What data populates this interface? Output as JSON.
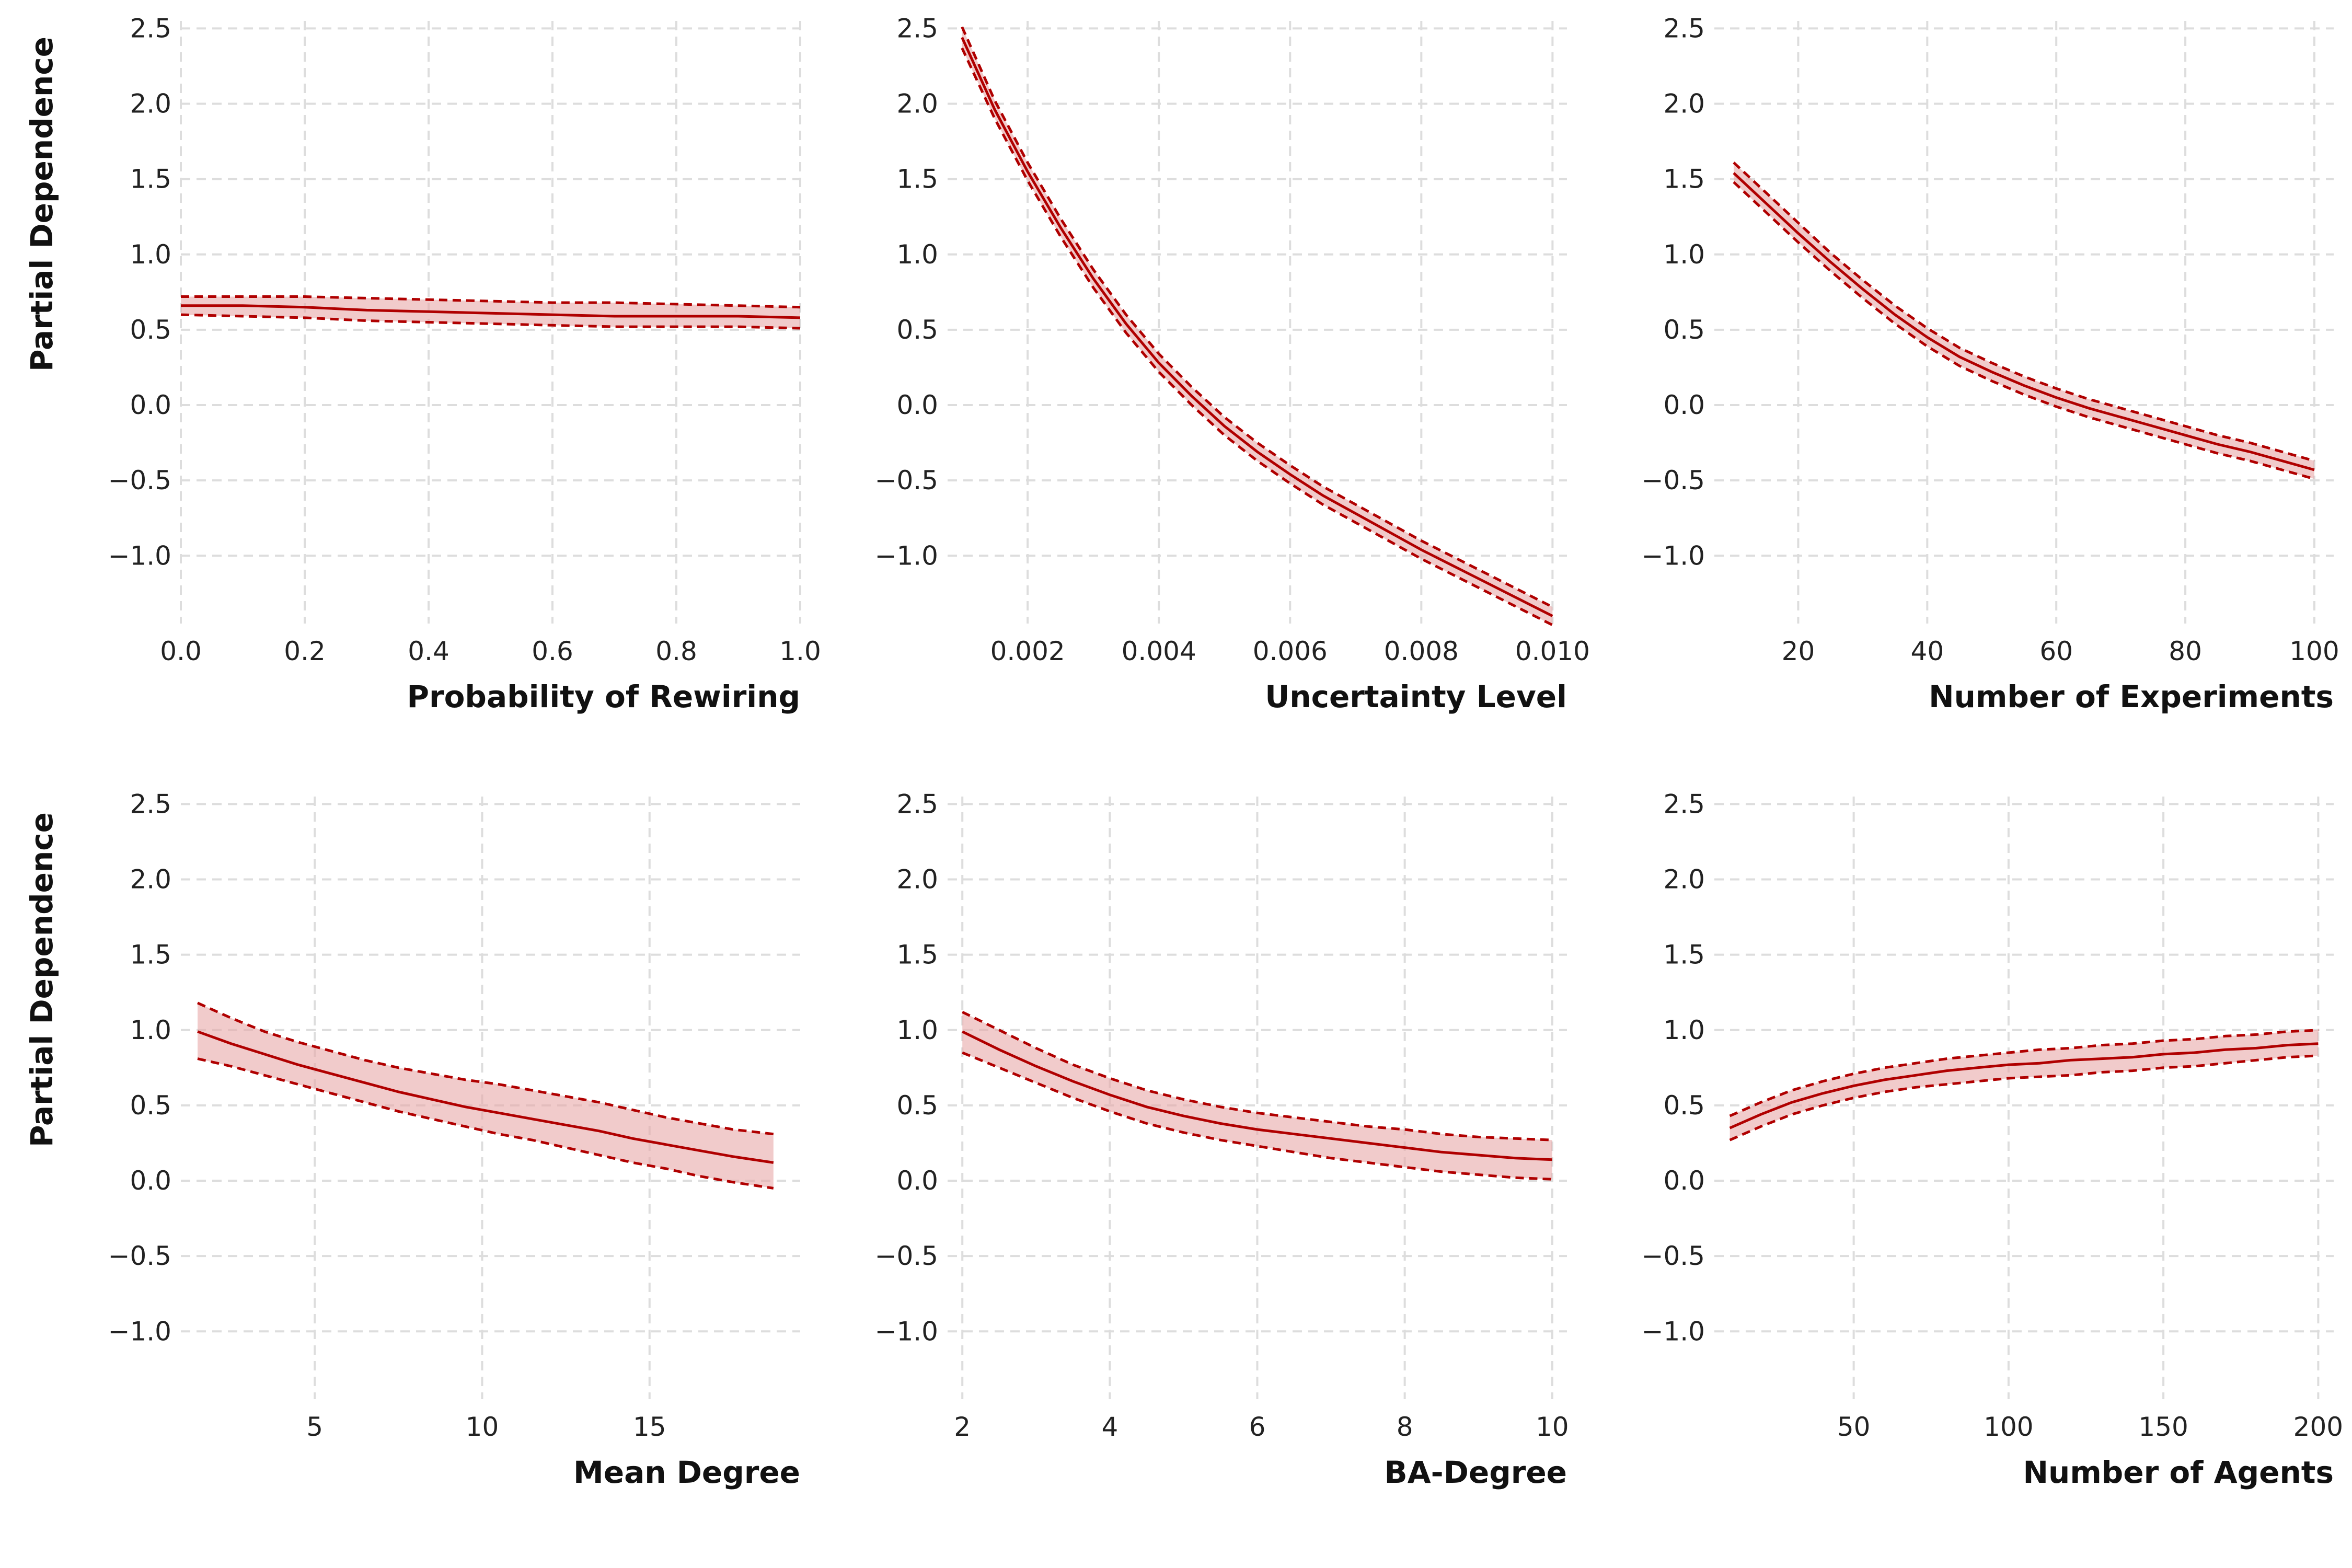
{
  "colors": {
    "line": "#b00000",
    "band": "#e8a9a9",
    "grid": "#dddddd"
  },
  "chart_data": [
    {
      "type": "line",
      "xlabel": "Probability of Rewiring",
      "ylabel": "Partial Dependence",
      "xlim": [
        0.0,
        1.0
      ],
      "ylim": [
        -1.45,
        2.55
      ],
      "xticks": [
        0.0,
        0.2,
        0.4,
        0.6,
        0.8,
        1.0
      ],
      "xtick_labels": [
        "0.0",
        "0.2",
        "0.4",
        "0.6",
        "0.8",
        "1.0"
      ],
      "yticks": [
        -1.0,
        -0.5,
        0.0,
        0.5,
        1.0,
        1.5,
        2.0,
        2.5
      ],
      "ytick_labels": [
        "−1.0",
        "−0.5",
        "0.0",
        "0.5",
        "1.0",
        "1.5",
        "2.0",
        "2.5"
      ],
      "grid": true,
      "x": [
        0.0,
        0.1,
        0.2,
        0.3,
        0.4,
        0.5,
        0.6,
        0.7,
        0.8,
        0.9,
        1.0
      ],
      "mean": [
        0.66,
        0.66,
        0.65,
        0.63,
        0.62,
        0.61,
        0.6,
        0.59,
        0.59,
        0.59,
        0.58
      ],
      "lower": [
        0.6,
        0.59,
        0.58,
        0.56,
        0.55,
        0.54,
        0.53,
        0.52,
        0.52,
        0.52,
        0.51
      ],
      "upper": [
        0.72,
        0.72,
        0.72,
        0.71,
        0.7,
        0.69,
        0.68,
        0.68,
        0.67,
        0.66,
        0.65
      ]
    },
    {
      "type": "line",
      "xlabel": "Uncertainty Level",
      "ylabel": "",
      "xlim": [
        0.00078,
        0.01022
      ],
      "ylim": [
        -1.45,
        2.55
      ],
      "xticks": [
        0.002,
        0.004,
        0.006,
        0.008,
        0.01
      ],
      "xtick_labels": [
        "0.002",
        "0.004",
        "0.006",
        "0.008",
        "0.010"
      ],
      "yticks": [
        -1.0,
        -0.5,
        0.0,
        0.5,
        1.0,
        1.5,
        2.0,
        2.5
      ],
      "ytick_labels": [
        "−1.0",
        "−0.5",
        "0.0",
        "0.5",
        "1.0",
        "1.5",
        "2.0",
        "2.5"
      ],
      "grid": true,
      "x": [
        0.001,
        0.0015,
        0.002,
        0.0025,
        0.003,
        0.0035,
        0.004,
        0.0045,
        0.005,
        0.0055,
        0.006,
        0.0065,
        0.007,
        0.0075,
        0.008,
        0.0085,
        0.009,
        0.0095,
        0.01
      ],
      "mean": [
        2.44,
        1.96,
        1.55,
        1.18,
        0.84,
        0.54,
        0.28,
        0.06,
        -0.14,
        -0.31,
        -0.46,
        -0.6,
        -0.72,
        -0.84,
        -0.96,
        -1.07,
        -1.18,
        -1.29,
        -1.4
      ],
      "lower": [
        2.37,
        1.9,
        1.49,
        1.12,
        0.78,
        0.48,
        0.22,
        0.0,
        -0.2,
        -0.37,
        -0.52,
        -0.66,
        -0.78,
        -0.9,
        -1.02,
        -1.13,
        -1.24,
        -1.35,
        -1.46
      ],
      "upper": [
        2.51,
        2.02,
        1.61,
        1.24,
        0.9,
        0.6,
        0.34,
        0.12,
        -0.08,
        -0.25,
        -0.4,
        -0.54,
        -0.66,
        -0.78,
        -0.9,
        -1.01,
        -1.12,
        -1.23,
        -1.34
      ]
    },
    {
      "type": "line",
      "xlabel": "Number of Experiments",
      "ylabel": "",
      "xlim": [
        7,
        103
      ],
      "ylim": [
        -1.45,
        2.55
      ],
      "xticks": [
        20,
        40,
        60,
        80,
        100
      ],
      "xtick_labels": [
        "20",
        "40",
        "60",
        "80",
        "100"
      ],
      "yticks": [
        -1.0,
        -0.5,
        0.0,
        0.5,
        1.0,
        1.5,
        2.0,
        2.5
      ],
      "ytick_labels": [
        "−1.0",
        "−0.5",
        "0.0",
        "0.5",
        "1.0",
        "1.5",
        "2.0",
        "2.5"
      ],
      "grid": true,
      "x": [
        10,
        15,
        20,
        25,
        30,
        35,
        40,
        45,
        50,
        55,
        60,
        65,
        70,
        75,
        80,
        85,
        90,
        95,
        100
      ],
      "mean": [
        1.54,
        1.34,
        1.14,
        0.95,
        0.77,
        0.6,
        0.45,
        0.32,
        0.22,
        0.13,
        0.05,
        -0.02,
        -0.08,
        -0.14,
        -0.2,
        -0.26,
        -0.31,
        -0.37,
        -0.43
      ],
      "lower": [
        1.48,
        1.28,
        1.08,
        0.89,
        0.71,
        0.54,
        0.39,
        0.26,
        0.16,
        0.07,
        -0.01,
        -0.08,
        -0.14,
        -0.2,
        -0.26,
        -0.32,
        -0.37,
        -0.43,
        -0.49
      ],
      "upper": [
        1.61,
        1.41,
        1.21,
        1.01,
        0.83,
        0.66,
        0.51,
        0.38,
        0.28,
        0.19,
        0.11,
        0.04,
        -0.02,
        -0.08,
        -0.14,
        -0.2,
        -0.25,
        -0.31,
        -0.37
      ]
    },
    {
      "type": "line",
      "xlabel": "Mean Degree",
      "ylabel": "Partial Dependence",
      "xlim": [
        1.0,
        19.5
      ],
      "ylim": [
        -1.45,
        2.55
      ],
      "xticks": [
        5,
        10,
        15
      ],
      "xtick_labels": [
        "5",
        "10",
        "15"
      ],
      "yticks": [
        -1.0,
        -0.5,
        0.0,
        0.5,
        1.0,
        1.5,
        2.0,
        2.5
      ],
      "ytick_labels": [
        "−1.0",
        "−0.5",
        "0.0",
        "0.5",
        "1.0",
        "1.5",
        "2.0",
        "2.5"
      ],
      "grid": true,
      "x": [
        1.5,
        2.5,
        3.5,
        4.5,
        5.5,
        6.5,
        7.5,
        8.5,
        9.5,
        10.5,
        11.5,
        12.5,
        13.5,
        14.5,
        15.5,
        16.5,
        17.5,
        18.7
      ],
      "mean": [
        0.99,
        0.91,
        0.84,
        0.77,
        0.71,
        0.65,
        0.59,
        0.54,
        0.49,
        0.45,
        0.41,
        0.37,
        0.33,
        0.28,
        0.24,
        0.2,
        0.16,
        0.12
      ],
      "lower": [
        0.81,
        0.76,
        0.7,
        0.64,
        0.58,
        0.52,
        0.46,
        0.41,
        0.36,
        0.31,
        0.27,
        0.22,
        0.17,
        0.12,
        0.08,
        0.03,
        -0.01,
        -0.05
      ],
      "upper": [
        1.18,
        1.08,
        0.99,
        0.92,
        0.86,
        0.8,
        0.75,
        0.71,
        0.67,
        0.64,
        0.6,
        0.56,
        0.52,
        0.47,
        0.42,
        0.38,
        0.34,
        0.31
      ]
    },
    {
      "type": "line",
      "xlabel": "BA-Degree",
      "ylabel": "",
      "xlim": [
        1.8,
        10.2
      ],
      "ylim": [
        -1.45,
        2.55
      ],
      "xticks": [
        2,
        4,
        6,
        8,
        10
      ],
      "xtick_labels": [
        "2",
        "4",
        "6",
        "8",
        "10"
      ],
      "yticks": [
        -1.0,
        -0.5,
        0.0,
        0.5,
        1.0,
        1.5,
        2.0,
        2.5
      ],
      "ytick_labels": [
        "−1.0",
        "−0.5",
        "0.0",
        "0.5",
        "1.0",
        "1.5",
        "2.0",
        "2.5"
      ],
      "grid": true,
      "x": [
        2,
        2.5,
        3,
        3.5,
        4,
        4.5,
        5,
        5.5,
        6,
        6.5,
        7,
        7.5,
        8,
        8.5,
        9,
        9.5,
        10
      ],
      "mean": [
        0.99,
        0.87,
        0.76,
        0.66,
        0.57,
        0.49,
        0.43,
        0.38,
        0.34,
        0.31,
        0.28,
        0.25,
        0.22,
        0.19,
        0.17,
        0.15,
        0.14
      ],
      "lower": [
        0.85,
        0.75,
        0.65,
        0.55,
        0.46,
        0.38,
        0.32,
        0.27,
        0.23,
        0.19,
        0.15,
        0.12,
        0.09,
        0.06,
        0.04,
        0.02,
        0.01
      ],
      "upper": [
        1.12,
        1.0,
        0.88,
        0.77,
        0.68,
        0.6,
        0.54,
        0.49,
        0.45,
        0.42,
        0.39,
        0.36,
        0.34,
        0.31,
        0.29,
        0.28,
        0.27
      ]
    },
    {
      "type": "line",
      "xlabel": "Number of Agents",
      "ylabel": "",
      "xlim": [
        5,
        205
      ],
      "ylim": [
        -1.45,
        2.55
      ],
      "xticks": [
        50,
        100,
        150,
        200
      ],
      "xtick_labels": [
        "50",
        "100",
        "150",
        "200"
      ],
      "yticks": [
        -1.0,
        -0.5,
        0.0,
        0.5,
        1.0,
        1.5,
        2.0,
        2.5
      ],
      "ytick_labels": [
        "−1.0",
        "−0.5",
        "0.0",
        "0.5",
        "1.0",
        "1.5",
        "2.0",
        "2.5"
      ],
      "grid": true,
      "x": [
        10,
        20,
        30,
        40,
        50,
        60,
        70,
        80,
        90,
        100,
        110,
        120,
        130,
        140,
        150,
        160,
        170,
        180,
        190,
        200
      ],
      "mean": [
        0.35,
        0.44,
        0.52,
        0.58,
        0.63,
        0.67,
        0.7,
        0.73,
        0.75,
        0.77,
        0.78,
        0.8,
        0.81,
        0.82,
        0.84,
        0.85,
        0.87,
        0.88,
        0.9,
        0.91
      ],
      "lower": [
        0.27,
        0.36,
        0.44,
        0.5,
        0.55,
        0.59,
        0.62,
        0.64,
        0.66,
        0.68,
        0.69,
        0.7,
        0.72,
        0.73,
        0.75,
        0.76,
        0.78,
        0.8,
        0.82,
        0.83
      ],
      "upper": [
        0.43,
        0.52,
        0.6,
        0.66,
        0.71,
        0.75,
        0.78,
        0.81,
        0.83,
        0.85,
        0.87,
        0.88,
        0.9,
        0.91,
        0.93,
        0.94,
        0.96,
        0.97,
        0.99,
        1.0
      ]
    }
  ]
}
